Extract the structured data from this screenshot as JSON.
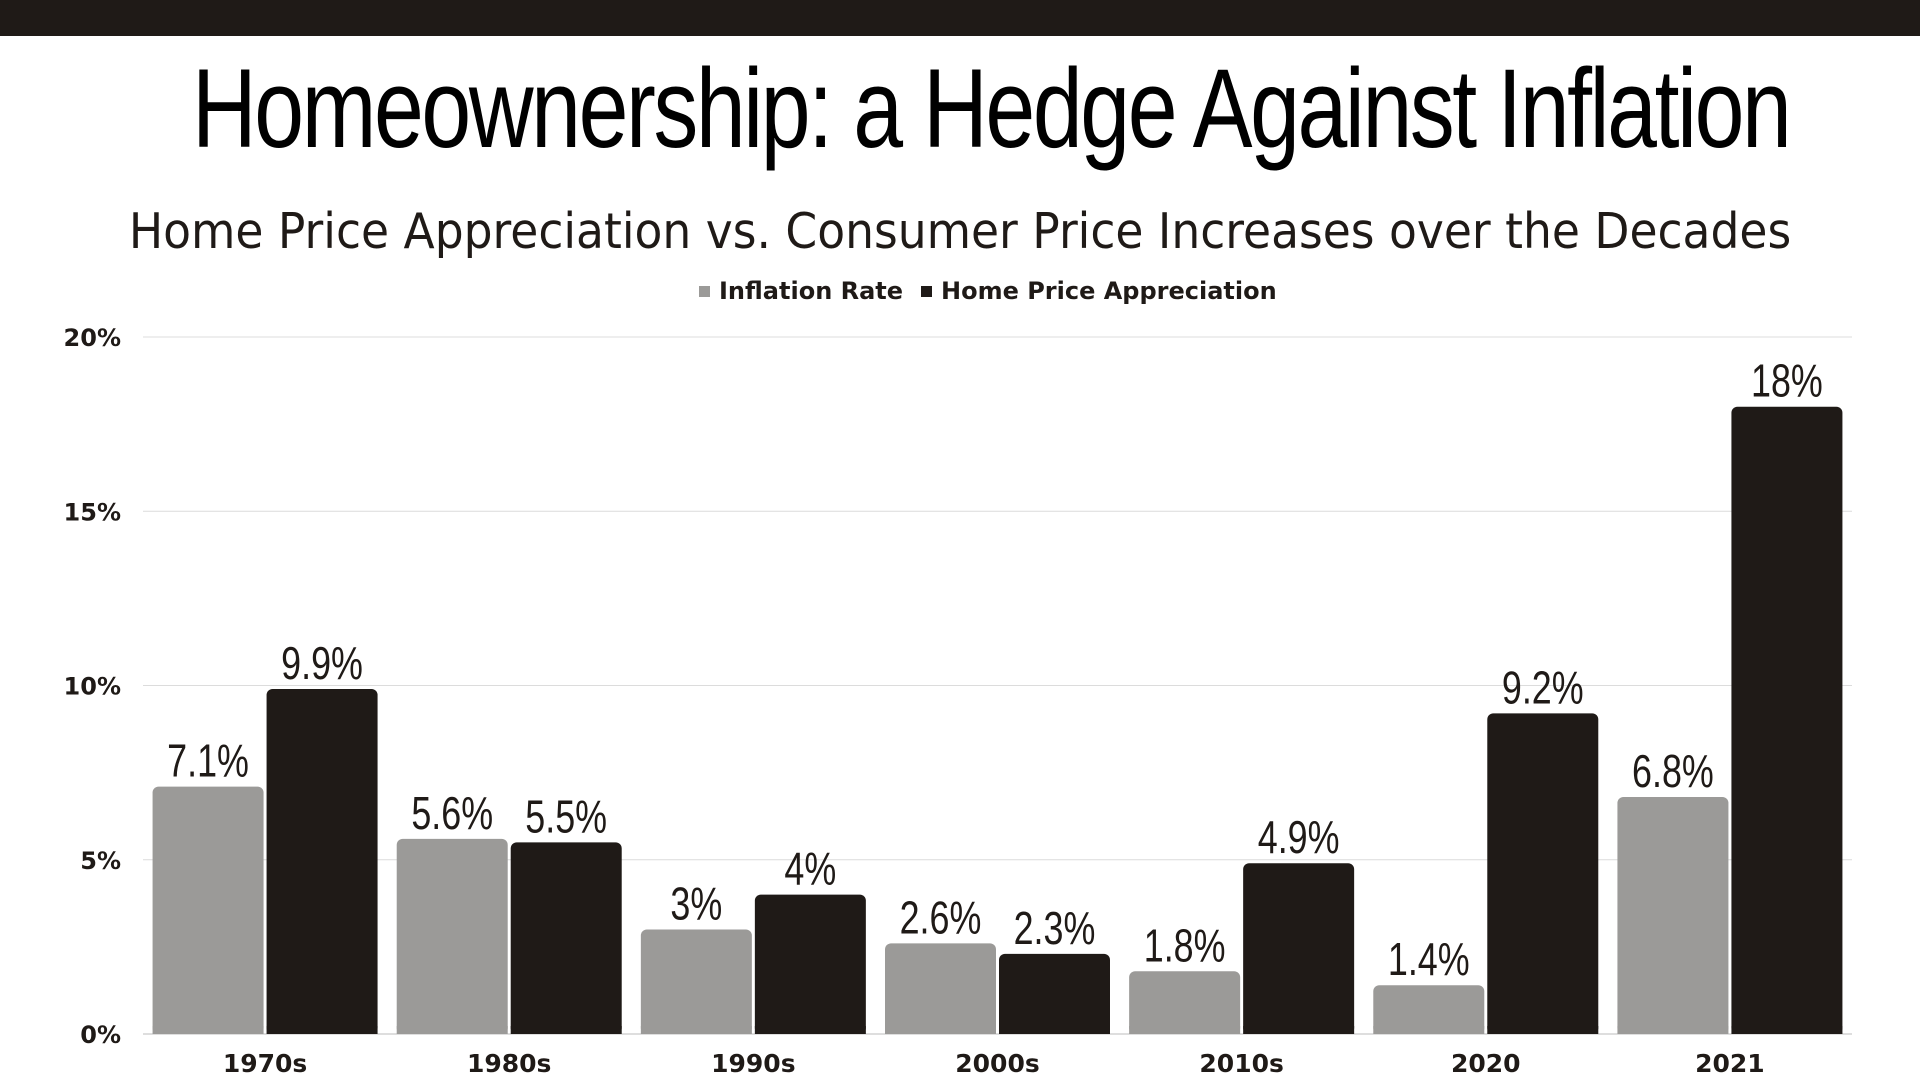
{
  "title": "Homeownership: a Hedge Against Inflation",
  "subtitle": "Home Price Appreciation vs. Consumer Price Increases over the Decades",
  "chart_data": {
    "type": "bar",
    "categories": [
      "1970s",
      "1980s",
      "1990s",
      "2000s",
      "2010s",
      "2020",
      "2021"
    ],
    "series": [
      {
        "name": "Inflation Rate",
        "color": "#9b9a98",
        "values": [
          7.1,
          5.6,
          3,
          2.6,
          1.8,
          1.4,
          6.8
        ],
        "labels": [
          "7.1%",
          "5.6%",
          "3%",
          "2.6%",
          "1.8%",
          "1.4%",
          "6.8%"
        ]
      },
      {
        "name": "Home Price Appreciation",
        "color": "#1f1a17",
        "values": [
          9.9,
          5.5,
          4,
          2.3,
          4.9,
          9.2,
          18
        ],
        "labels": [
          "9.9%",
          "5.5%",
          "4%",
          "2.3%",
          "4.9%",
          "9.2%",
          "18%"
        ]
      }
    ],
    "y_ticks": [
      "0%",
      "5%",
      "10%",
      "15%",
      "20%"
    ],
    "ylim": [
      0,
      20
    ],
    "grid": true,
    "legend_position": "top-center"
  }
}
